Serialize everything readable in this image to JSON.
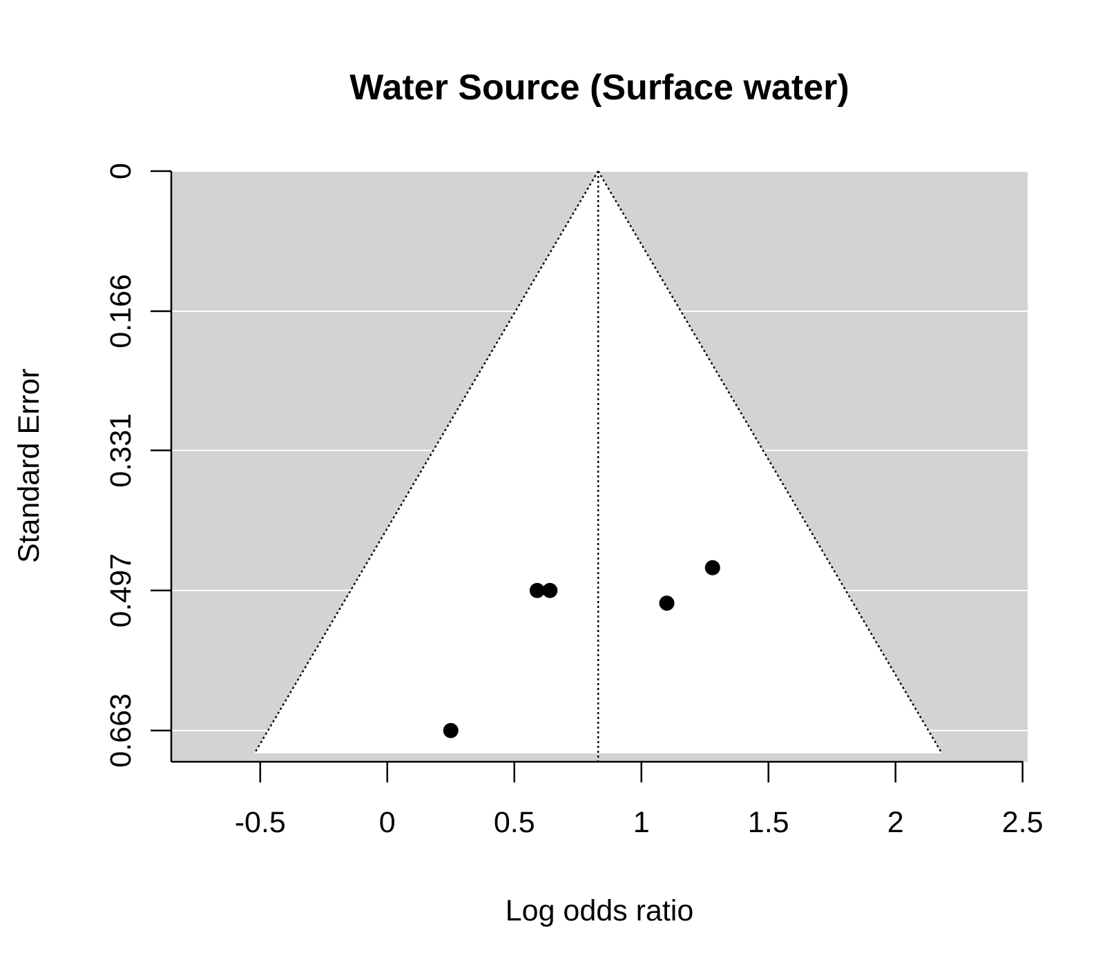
{
  "chart_data": {
    "type": "scatter",
    "subtype": "funnel",
    "title": "Water Source (Surface water)",
    "xlabel": "Log odds ratio",
    "ylabel": "Standard Error",
    "xlim": [
      -0.85,
      2.52
    ],
    "ylim": [
      0.7,
      0.0
    ],
    "y_reversed": true,
    "x_ticks": [
      -0.5,
      0,
      0.5,
      1,
      1.5,
      2,
      2.5
    ],
    "x_tick_labels": [
      "-0.5",
      "0",
      "0.5",
      "1",
      "1.5",
      "2",
      "2.5"
    ],
    "y_ticks": [
      0,
      0.166,
      0.331,
      0.497,
      0.663
    ],
    "y_tick_labels": [
      "0",
      "0.166",
      "0.331",
      "0.497",
      "0.663"
    ],
    "grid": true,
    "funnel": {
      "center": 0.83,
      "z": 1.96,
      "se_max": 0.69
    },
    "points": [
      {
        "x": 0.25,
        "y": 0.663
      },
      {
        "x": 0.59,
        "y": 0.497
      },
      {
        "x": 0.64,
        "y": 0.497
      },
      {
        "x": 1.1,
        "y": 0.512
      },
      {
        "x": 1.28,
        "y": 0.47
      }
    ],
    "colors": {
      "background_outside": "#d3d3d3",
      "funnel_fill": "#ffffff",
      "grid": "#ffffff",
      "points": "#000000"
    }
  }
}
